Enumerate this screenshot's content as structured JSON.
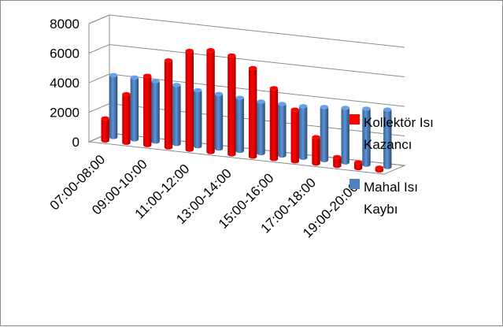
{
  "chart_data": {
    "type": "bar",
    "title": "",
    "xlabel": "",
    "ylabel": "",
    "ylim": [
      0,
      8000
    ],
    "yticks": [
      "8000",
      "6000",
      "4000",
      "2000",
      "0"
    ],
    "categories": [
      "07:00-08:00",
      "08:00-09:00",
      "09:00-10:00",
      "10:00-11:00",
      "11:00-12:00",
      "12:00-13:00",
      "13:00-14:00",
      "14:00-15:00",
      "15:00-16:00",
      "16:00-17:00",
      "17:00-18:00",
      "18:00-19:00",
      "19:00-20:00",
      "20:00-21:00"
    ],
    "category_labels_shown": [
      "07:00-08:00",
      "09:00-10:00",
      "11:00-12:00",
      "13:00-14:00",
      "15:00-16:00",
      "17:00-18:00",
      "19:00-20:00"
    ],
    "grid": true,
    "legend_position": "right",
    "series": [
      {
        "name": "Kollektör Isı Kazancı",
        "color": "#ff0000",
        "values": [
          1500,
          3300,
          4700,
          5900,
          6700,
          6900,
          6700,
          6000,
          4800,
          3500,
          1800,
          600,
          400,
          200
        ]
      },
      {
        "name": "Mahal Isı Kaybı",
        "color": "#4f81bd",
        "values": [
          4200,
          4200,
          4100,
          4000,
          3800,
          3700,
          3600,
          3500,
          3500,
          3500,
          3600,
          3700,
          3800,
          3900
        ]
      }
    ]
  }
}
